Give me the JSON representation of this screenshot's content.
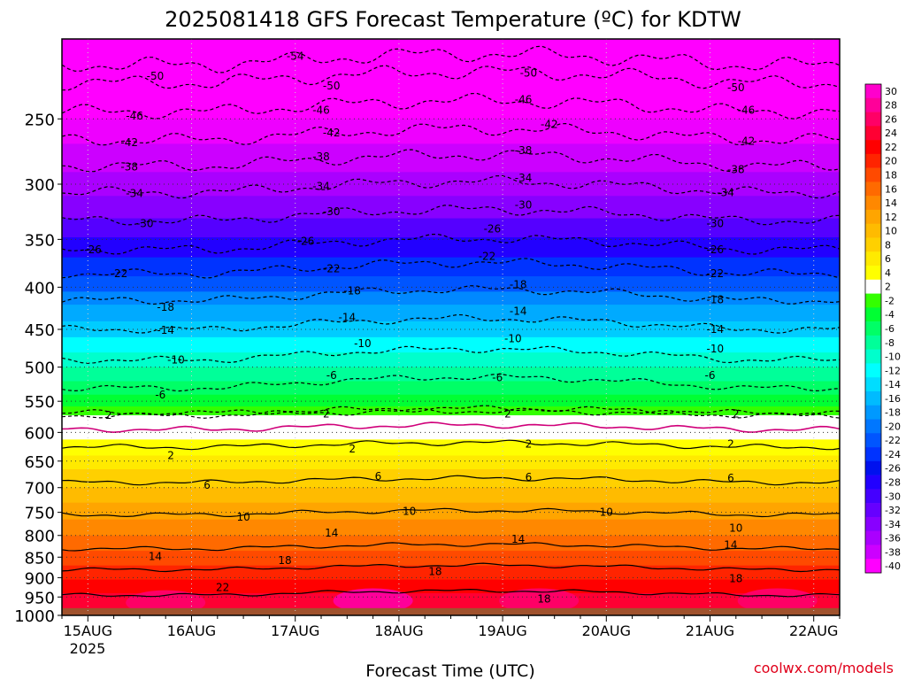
{
  "chart_data": {
    "type": "heatmap",
    "title": "2025081418 GFS Forecast Temperature (ºC) for KDTW",
    "xlabel": "Forecast Time (UTC)",
    "ylabel": "",
    "credit": "coolwx.com/models",
    "x_ticks": [
      "15AUG",
      "16AUG",
      "17AUG",
      "18AUG",
      "19AUG",
      "20AUG",
      "21AUG",
      "22AUG"
    ],
    "x_year": "2025",
    "y_ticks": [
      250,
      300,
      350,
      400,
      450,
      500,
      550,
      600,
      650,
      700,
      750,
      800,
      850,
      900,
      950,
      1000
    ],
    "y_scale": "log",
    "y_inverted": true,
    "ylim": [
      1000,
      200
    ],
    "xlim_days": [
      0,
      7.5
    ],
    "grid": "dotted",
    "surface_fill": "#a0522d",
    "colorbar_labels": [
      "30",
      "28",
      "26",
      "24",
      "22",
      "20",
      "18",
      "16",
      "14",
      "12",
      "10",
      "8",
      "6",
      "4",
      "2",
      "-2",
      "-4",
      "-6",
      "-8",
      "-10",
      "-12",
      "-14",
      "-16",
      "-18",
      "-20",
      "-22",
      "-24",
      "-26",
      "-28",
      "-30",
      "-32",
      "-34",
      "-36",
      "-38",
      "-40"
    ],
    "colorbar_colors": [
      "#ff00cc",
      "#ff0099",
      "#ff0066",
      "#ff0033",
      "#ff0000",
      "#ff2400",
      "#ff4a00",
      "#ff6a00",
      "#ff8800",
      "#ffa500",
      "#ffbb00",
      "#ffd000",
      "#ffea00",
      "#ffff00",
      "#ffffff",
      "#33ff00",
      "#00ff33",
      "#00ff66",
      "#00ff99",
      "#00ffcc",
      "#00ffff",
      "#00ddff",
      "#00bbff",
      "#0099ff",
      "#0077ff",
      "#0055ff",
      "#0033ff",
      "#0011ee",
      "#2200ff",
      "#4400ff",
      "#6600ff",
      "#8800ff",
      "#aa00ff",
      "#cc00ff",
      "#ff00ff"
    ],
    "series": [
      {
        "name": "-54",
        "pressure": 215,
        "style": "dashed",
        "labels": [
          [
            2.25,
            210
          ]
        ]
      },
      {
        "name": "-50",
        "pressure": 226,
        "style": "dashed",
        "labels": [
          [
            0.9,
            222
          ],
          [
            2.6,
            228
          ],
          [
            4.5,
            220
          ],
          [
            6.5,
            229
          ]
        ]
      },
      {
        "name": "-46",
        "pressure": 245,
        "style": "dashed",
        "labels": [
          [
            0.7,
            248
          ],
          [
            2.5,
            244
          ],
          [
            4.45,
            237
          ],
          [
            6.6,
            244
          ]
        ]
      },
      {
        "name": "-42",
        "pressure": 265,
        "style": "dashed",
        "labels": [
          [
            0.65,
            267
          ],
          [
            2.6,
            260
          ],
          [
            4.7,
            254
          ],
          [
            6.6,
            266
          ]
        ]
      },
      {
        "name": "-38",
        "pressure": 285,
        "style": "dashed",
        "labels": [
          [
            0.65,
            286
          ],
          [
            2.5,
            278
          ],
          [
            4.45,
            273
          ],
          [
            6.5,
            288
          ]
        ]
      },
      {
        "name": "-34",
        "pressure": 307,
        "style": "dashed",
        "labels": [
          [
            0.7,
            308
          ],
          [
            2.5,
            302
          ],
          [
            4.45,
            295
          ],
          [
            6.4,
            307
          ]
        ]
      },
      {
        "name": "-30",
        "pressure": 332,
        "style": "dashed",
        "labels": [
          [
            0.8,
            335
          ],
          [
            2.6,
            324
          ],
          [
            4.45,
            318
          ],
          [
            6.3,
            335
          ]
        ]
      },
      {
        "name": "-26",
        "pressure": 360,
        "style": "dashed",
        "labels": [
          [
            0.3,
            360
          ],
          [
            2.35,
            352
          ],
          [
            4.15,
            340
          ],
          [
            6.3,
            360
          ]
        ]
      },
      {
        "name": "-22",
        "pressure": 385,
        "style": "dashed",
        "labels": [
          [
            0.55,
            385
          ],
          [
            2.6,
            380
          ],
          [
            4.1,
            367
          ],
          [
            6.3,
            385
          ]
        ]
      },
      {
        "name": "-18",
        "pressure": 415,
        "style": "dashed",
        "labels": [
          [
            1.0,
            423
          ],
          [
            2.8,
            404
          ],
          [
            4.4,
            397
          ],
          [
            6.3,
            414
          ]
        ]
      },
      {
        "name": "-14",
        "pressure": 450,
        "style": "dashed",
        "labels": [
          [
            1.0,
            451
          ],
          [
            2.75,
            435
          ],
          [
            4.4,
            428
          ],
          [
            6.3,
            450
          ]
        ]
      },
      {
        "name": "-10",
        "pressure": 490,
        "style": "dashed",
        "labels": [
          [
            1.1,
            490
          ],
          [
            2.9,
            468
          ],
          [
            4.35,
            462
          ],
          [
            6.3,
            475
          ]
        ]
      },
      {
        "name": "-6",
        "pressure": 530,
        "style": "dashed",
        "labels": [
          [
            0.95,
            540
          ],
          [
            2.6,
            512
          ],
          [
            4.2,
            515
          ],
          [
            6.25,
            512
          ]
        ]
      },
      {
        "name": "-2",
        "pressure": 568,
        "style": "dashed",
        "labels": []
      },
      {
        "name": "0",
        "pressure": 595,
        "style": "magenta",
        "labels": []
      },
      {
        "name": "2-upper",
        "pressure": 572,
        "style": "dashed",
        "labels": [
          [
            0.45,
            572
          ],
          [
            2.55,
            570
          ],
          [
            4.3,
            570
          ],
          [
            6.5,
            570
          ]
        ]
      },
      {
        "name": "2",
        "pressure": 625,
        "style": "solid",
        "labels": [
          [
            1.05,
            640
          ],
          [
            2.8,
            628
          ],
          [
            4.5,
            620
          ],
          [
            6.45,
            620
          ]
        ]
      },
      {
        "name": "6",
        "pressure": 690,
        "style": "solid",
        "labels": [
          [
            1.4,
            695
          ],
          [
            3.05,
            678
          ],
          [
            4.5,
            680
          ],
          [
            6.45,
            682
          ]
        ]
      },
      {
        "name": "10",
        "pressure": 755,
        "style": "solid",
        "labels": [
          [
            1.75,
            760
          ],
          [
            3.35,
            748
          ],
          [
            5.25,
            750
          ],
          [
            6.5,
            784
          ]
        ]
      },
      {
        "name": "14",
        "pressure": 830,
        "style": "solid",
        "labels": [
          [
            0.9,
            848
          ],
          [
            2.6,
            795
          ],
          [
            4.4,
            808
          ],
          [
            6.45,
            822
          ]
        ]
      },
      {
        "name": "18",
        "pressure": 880,
        "style": "solid",
        "labels": [
          [
            2.15,
            858
          ],
          [
            3.6,
            885
          ],
          [
            4.65,
            955
          ],
          [
            6.5,
            902
          ]
        ]
      },
      {
        "name": "22",
        "pressure": 945,
        "style": "solid",
        "labels": [
          [
            1.55,
            925
          ]
        ]
      }
    ]
  }
}
